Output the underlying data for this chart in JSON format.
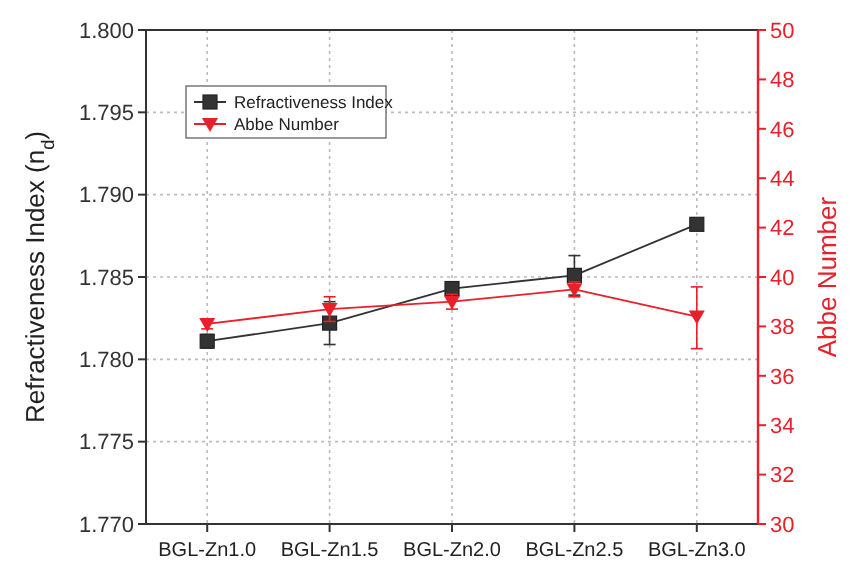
{
  "chart_data": {
    "type": "line",
    "xlabel": null,
    "ylabel": "Refractiveness Index (n$_{d}$)",
    "y2label": "Abbe Number",
    "categories": [
      "BGL-Zn1.0",
      "BGL-Zn1.5",
      "BGL-Zn2.0",
      "BGL-Zn2.5",
      "BGL-Zn3.0"
    ],
    "series": [
      {
        "name": "Refractiveness Index",
        "color": "#333333",
        "marker": "square",
        "values": [
          1.7811,
          1.7822,
          1.7843,
          1.7851,
          1.7882
        ],
        "errors": [
          0.0004,
          0.0013,
          null,
          0.0012,
          null
        ]
      },
      {
        "name": "Abbe Number",
        "color": "#e8202a",
        "marker": "triangle",
        "axis": "y2",
        "values": [
          38.1,
          38.7,
          39.0,
          39.5,
          38.4
        ],
        "errors": [
          0.2,
          0.5,
          0.3,
          0.3,
          [
            37.1,
            39.6
          ]
        ]
      }
    ],
    "ylim": [
      1.77,
      1.8
    ],
    "yticks": [
      {
        "value": 1.77,
        "label": "1.770"
      },
      1.775,
      {
        "value": 1.78,
        "label": "1.780"
      },
      1.785,
      {
        "value": 1.79,
        "label": "1.790"
      },
      1.795,
      {
        "value": 1.8,
        "label": "1.800"
      }
    ],
    "y2lim": [
      30,
      50
    ],
    "y2ticks": [
      30,
      32,
      34,
      36,
      38,
      40,
      42,
      44,
      46,
      48,
      50
    ],
    "grid": true,
    "legend": "top left"
  }
}
